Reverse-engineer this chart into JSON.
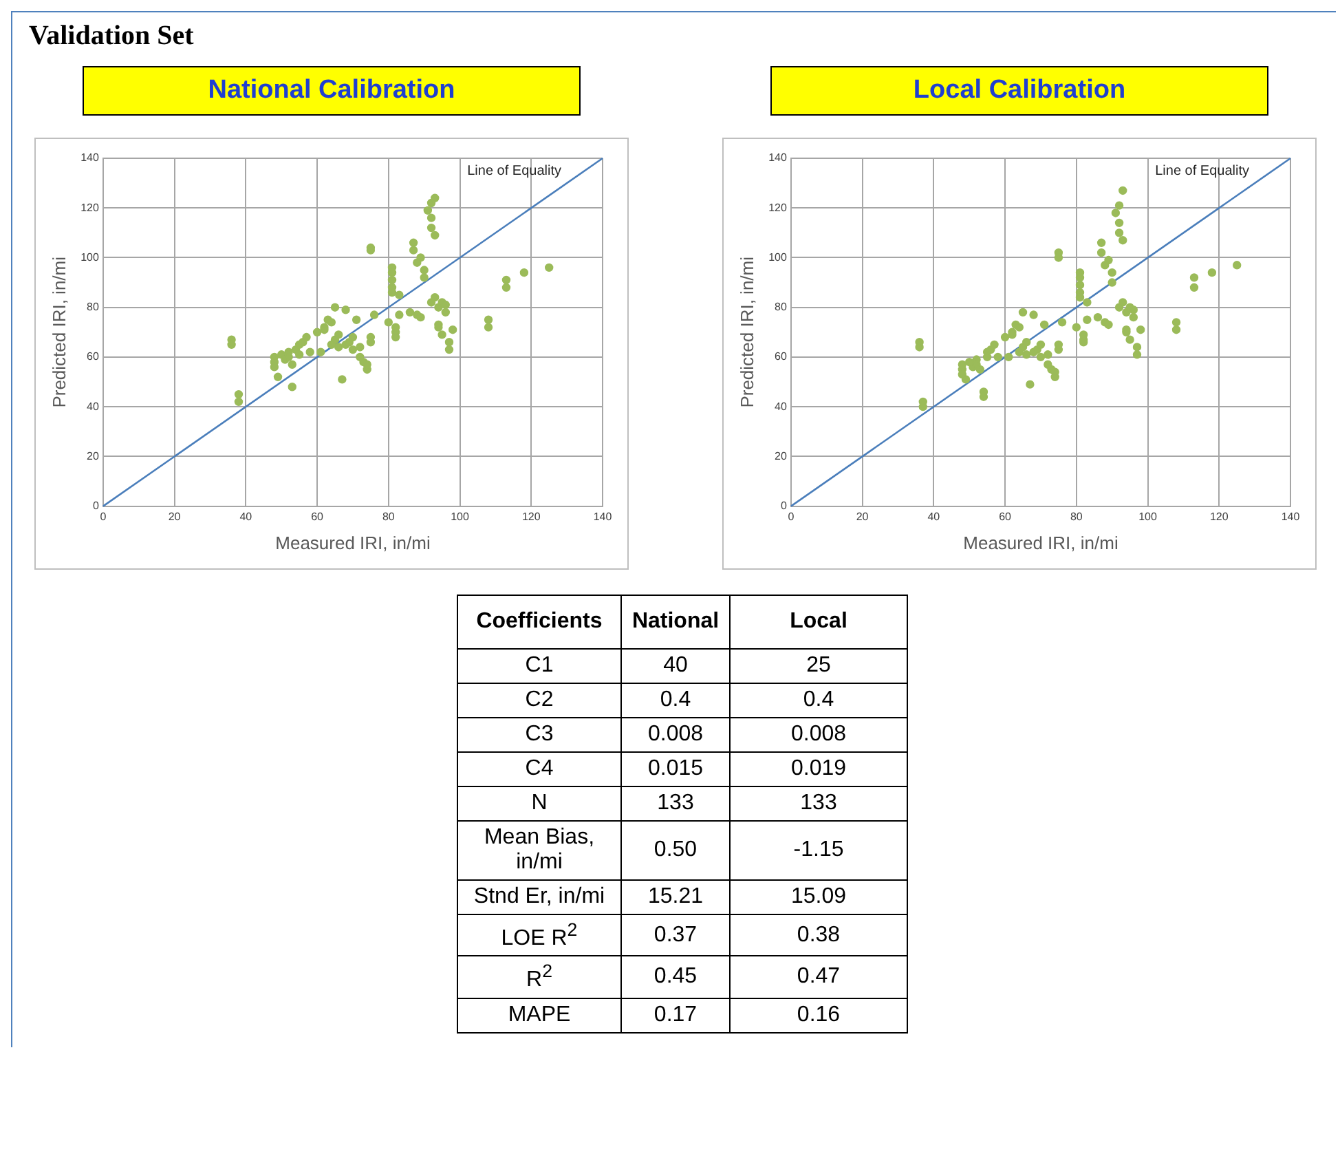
{
  "chart_data": [
    {
      "type": "scatter",
      "title": "National Calibration",
      "annotations": [
        "Validation Set"
      ],
      "xlabel": "Measured IRI, in/mi",
      "ylabel": "Predicted IRI, in/mi",
      "xlim": [
        0,
        140
      ],
      "ylim": [
        0,
        140
      ],
      "xticks": [
        0,
        20,
        40,
        60,
        80,
        100,
        120,
        140
      ],
      "yticks": [
        0,
        20,
        40,
        60,
        80,
        100,
        120,
        140
      ],
      "grid": true,
      "marker": "circle",
      "series": [
        {
          "type": "scatter",
          "color": "#9bbb59",
          "x": [
            36,
            36,
            38,
            38,
            48,
            48,
            48,
            49,
            50,
            51,
            52,
            52,
            53,
            53,
            54,
            55,
            55,
            56,
            57,
            58,
            60,
            61,
            62,
            62,
            63,
            64,
            65,
            64,
            65,
            66,
            66,
            67,
            68,
            68,
            69,
            70,
            70,
            71,
            72,
            72,
            73,
            74,
            74,
            75,
            75,
            76,
            75,
            75,
            80,
            81,
            81,
            81,
            81,
            81,
            82,
            82,
            82,
            83,
            83,
            86,
            87,
            87,
            88,
            88,
            89,
            89,
            90,
            90,
            91,
            92,
            92,
            92,
            93,
            93,
            94,
            94,
            94,
            95,
            95,
            96,
            96,
            97,
            97,
            98,
            93,
            92,
            108,
            108,
            113,
            113,
            118,
            125
          ],
          "values": [
            67,
            65,
            45,
            42,
            60,
            58,
            56,
            52,
            61,
            59,
            62,
            60,
            57,
            48,
            63,
            61,
            65,
            66,
            68,
            62,
            70,
            62,
            72,
            71,
            75,
            74,
            80,
            65,
            67,
            64,
            69,
            51,
            79,
            65,
            66,
            68,
            63,
            75,
            60,
            64,
            58,
            55,
            57,
            66,
            68,
            77,
            104,
            103,
            74,
            96,
            94,
            91,
            88,
            86,
            70,
            72,
            68,
            77,
            85,
            78,
            106,
            103,
            98,
            77,
            76,
            100,
            95,
            92,
            119,
            122,
            116,
            112,
            124,
            109,
            80,
            73,
            72,
            69,
            82,
            81,
            78,
            63,
            66,
            71,
            84,
            82,
            75,
            72,
            91,
            88,
            94,
            96
          ]
        },
        {
          "type": "line",
          "name": "Line of Equality",
          "color": "#4a7ebb",
          "marker": "none",
          "x": [
            0,
            140
          ],
          "values": [
            0,
            140
          ]
        }
      ]
    },
    {
      "type": "scatter",
      "title": "Local Calibration",
      "xlabel": "Measured IRI, in/mi",
      "ylabel": "Predicted IRI, in/mi",
      "xlim": [
        0,
        140
      ],
      "ylim": [
        0,
        140
      ],
      "xticks": [
        0,
        20,
        40,
        60,
        80,
        100,
        120,
        140
      ],
      "yticks": [
        0,
        20,
        40,
        60,
        80,
        100,
        120,
        140
      ],
      "grid": true,
      "marker": "circle",
      "series": [
        {
          "type": "scatter",
          "color": "#9bbb59",
          "x": [
            36,
            36,
            37,
            37,
            48,
            48,
            48,
            49,
            50,
            51,
            52,
            52,
            53,
            54,
            54,
            55,
            55,
            56,
            57,
            58,
            60,
            61,
            62,
            62,
            63,
            64,
            65,
            64,
            65,
            66,
            66,
            67,
            68,
            68,
            69,
            70,
            70,
            71,
            72,
            72,
            73,
            74,
            74,
            75,
            75,
            76,
            75,
            75,
            80,
            81,
            81,
            81,
            81,
            81,
            82,
            82,
            82,
            83,
            83,
            86,
            87,
            87,
            88,
            88,
            89,
            89,
            90,
            90,
            91,
            92,
            92,
            92,
            93,
            93,
            94,
            94,
            94,
            95,
            95,
            96,
            96,
            97,
            97,
            98,
            93,
            92,
            108,
            108,
            113,
            113,
            118,
            125
          ],
          "values": [
            66,
            64,
            42,
            40,
            57,
            55,
            53,
            51,
            58,
            56,
            59,
            57,
            55,
            46,
            44,
            60,
            62,
            63,
            65,
            60,
            68,
            60,
            70,
            69,
            73,
            72,
            78,
            62,
            64,
            61,
            66,
            49,
            77,
            62,
            63,
            65,
            60,
            73,
            57,
            61,
            55,
            52,
            54,
            63,
            65,
            74,
            102,
            100,
            72,
            94,
            92,
            89,
            86,
            84,
            67,
            69,
            66,
            75,
            82,
            76,
            106,
            102,
            97,
            74,
            73,
            99,
            94,
            90,
            118,
            121,
            114,
            110,
            127,
            107,
            78,
            71,
            70,
            67,
            80,
            79,
            76,
            61,
            64,
            71,
            82,
            80,
            74,
            71,
            92,
            88,
            94,
            97
          ]
        },
        {
          "type": "line",
          "name": "Line of Equality",
          "color": "#4a7ebb",
          "marker": "none",
          "x": [
            0,
            140
          ],
          "values": [
            0,
            140
          ]
        }
      ]
    },
    {
      "type": "other",
      "xlabel": "Coefficients",
      "categories": [
        "C1",
        "C2",
        "C3",
        "C4",
        "N",
        "Mean Bias, in/mi",
        "Stnd Er, in/mi",
        "LOE R$^{2}$",
        "R$^{2}$",
        "MAPE"
      ],
      "series": [
        {
          "name": "National",
          "values": [
            40,
            0.4,
            0.008,
            0.015,
            133,
            0.5,
            15.21,
            0.37,
            0.45,
            0.17
          ],
          "value_labels": [
            "40",
            "0.4",
            "0.008",
            "0.015",
            "133",
            "0.50",
            "15.21",
            "0.37",
            "0.45",
            "0.17"
          ]
        },
        {
          "name": "Local",
          "values": [
            25,
            0.4,
            0.008,
            0.019,
            133,
            -1.15,
            15.09,
            0.38,
            0.47,
            0.16
          ],
          "value_labels": [
            "25",
            "0.4",
            "0.008",
            "0.019",
            "133",
            "-1.15",
            "15.09",
            "0.38",
            "0.47",
            "0.16"
          ]
        }
      ]
    }
  ]
}
